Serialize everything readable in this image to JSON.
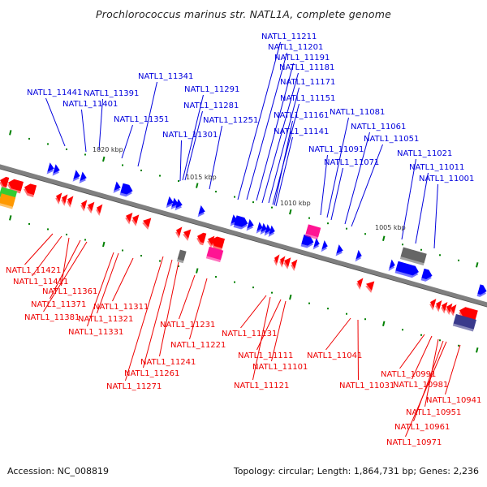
{
  "title": "Prochlorococcus marinus str. NATL1A, complete genome",
  "footer": {
    "accession": "Accession: NC_008819",
    "summary": "Topology: circular; Length: 1,864,731 bp; Genes: 2,236"
  },
  "colors": {
    "forward_label": "#0000dd",
    "reverse_label": "#ee0000",
    "forward_gene": "#0000ff",
    "reverse_gene": "#ff0000",
    "backbone": "#808080",
    "tick": "#008000",
    "rna_pink": "#ff1493",
    "pseudo_gray": "#666666",
    "other_navy": "#3a3a8c",
    "green_feature": "#33cc33",
    "orange_feature": "#ff9900"
  },
  "scale_markers": [
    "1020 kbp",
    "1015 kbp",
    "1010 kbp",
    "1005 kbp"
  ],
  "forward_genes": [
    "NATL1_11441",
    "NATL1_11401",
    "NATL1_11391",
    "NATL1_11351",
    "NATL1_11341",
    "NATL1_11301",
    "NATL1_11291",
    "NATL1_11281",
    "NATL1_11251",
    "NATL1_11211",
    "NATL1_11201",
    "NATL1_11191",
    "NATL1_11181",
    "NATL1_11171",
    "NATL1_11151",
    "NATL1_11161",
    "NATL1_11141",
    "NATL1_11091",
    "NATL1_11081",
    "NATL1_11071",
    "NATL1_11061",
    "NATL1_11051",
    "NATL1_11021",
    "NATL1_11011",
    "NATL1_11001"
  ],
  "reverse_genes": [
    "NATL1_11421",
    "NATL1_11411",
    "NATL1_11361",
    "NATL1_11371",
    "NATL1_11381",
    "NATL1_11311",
    "NATL1_11321",
    "NATL1_11331",
    "NATL1_11231",
    "NATL1_11221",
    "NATL1_11241",
    "NATL1_11261",
    "NATL1_11271",
    "NATL1_11131",
    "NATL1_11111",
    "NATL1_11101",
    "NATL1_11121",
    "NATL1_11041",
    "NATL1_11031",
    "NATL1_10991",
    "NATL1_10981",
    "NATL1_10941",
    "NATL1_10951",
    "NATL1_10961",
    "NATL1_10971"
  ]
}
